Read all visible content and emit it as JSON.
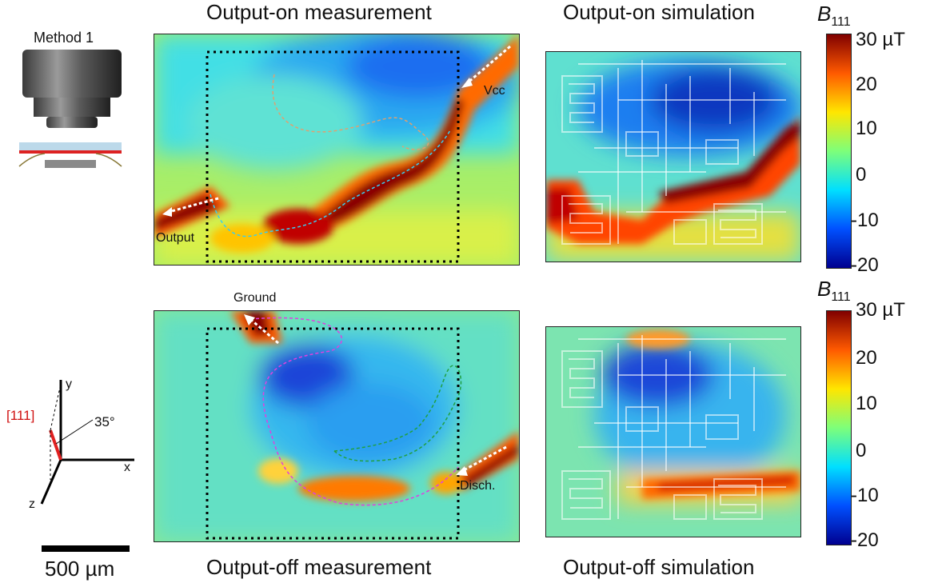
{
  "panels": {
    "meas_on_title": "Output-on measurement",
    "sim_on_title": "Output-on simulation",
    "meas_off_title": "Output-off measurement",
    "sim_off_title": "Output-off simulation"
  },
  "method_label": "Method 1",
  "annotations": {
    "vcc": "Vcc",
    "output": "Output",
    "ground": "Ground",
    "disch": "Disch."
  },
  "axes": {
    "dir111": "[111]",
    "angle": "35°",
    "x": "x",
    "y": "y",
    "z": "z"
  },
  "scale_bar": "500 µm",
  "colorbar": {
    "symbol": "B",
    "subscript": "111",
    "ticks": [
      "30 µT",
      "20",
      "10",
      "0",
      "-10",
      "-20"
    ],
    "colormap": [
      "#00008f",
      "#0050ff",
      "#00dfff",
      "#7dff7a",
      "#ffe600",
      "#ff5a00",
      "#800000"
    ]
  }
}
